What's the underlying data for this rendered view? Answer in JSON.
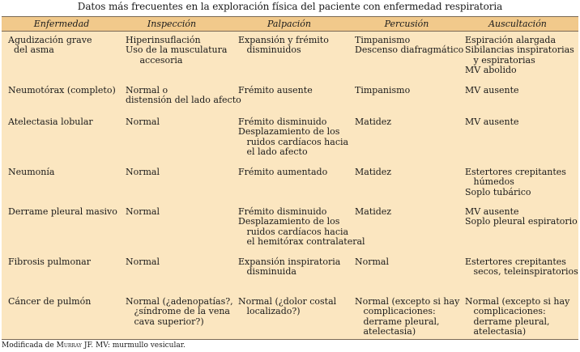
{
  "title": "Datos más frecuentes en la exploración física del paciente con enfermedad respiratoria",
  "headers": [
    "Enfermedad",
    "Inspección",
    "Palpación",
    "Percusión",
    "Auscultación"
  ],
  "rows": [
    {
      "cells": [
        [
          "Agudización grave",
          "  del asma"
        ],
        [
          "Hiperinsuflación",
          "Uso de la musculatura",
          "     accesoria"
        ],
        [
          "Expansión y frémito",
          "   disminuidos"
        ],
        [
          "Timpanismo",
          "Descenso diafragmático"
        ],
        [
          "Espiración alargada",
          "Sibilancias inspiratorias",
          "   y espiratorias",
          "MV abolido"
        ]
      ]
    },
    {
      "cells": [
        [
          "Neumotórax (completo)"
        ],
        [
          "Normal o",
          "distensión del lado afecto"
        ],
        [
          "Frémito ausente"
        ],
        [
          "Timpanismo"
        ],
        [
          "MV ausente"
        ]
      ]
    },
    {
      "cells": [
        [
          "Atelectasia lobular"
        ],
        [
          "Normal"
        ],
        [
          "Frémito disminuido",
          "Desplazamiento de los",
          "   ruidos cardíacos hacia",
          "   el lado afecto"
        ],
        [
          "Matidez"
        ],
        [
          "MV ausente"
        ]
      ]
    },
    {
      "cells": [
        [
          "Neumonía"
        ],
        [
          "Normal"
        ],
        [
          "Frémito aumentado"
        ],
        [
          "Matidez"
        ],
        [
          "Estertores crepitantes",
          "   húmedos",
          "Soplo tubárico"
        ]
      ]
    },
    {
      "cells": [
        [
          "Derrame pleural masivo"
        ],
        [
          "Normal"
        ],
        [
          "Frémito disminuido",
          "Desplazamiento de los",
          "   ruidos cardíacos hacia",
          "   el hemitórax contralateral"
        ],
        [
          "Matidez"
        ],
        [
          "MV ausente",
          "Soplo pleural espiratorio"
        ]
      ]
    },
    {
      "cells": [
        [
          "Fibrosis pulmonar"
        ],
        [
          "Normal"
        ],
        [
          "Expansión inspiratoria",
          "   disminuida"
        ],
        [
          "Normal"
        ],
        [
          "Estertores crepitantes",
          "   secos, teleinspiratorios"
        ]
      ]
    },
    {
      "cells": [
        [
          "Cáncer de pulmón"
        ],
        [
          "Normal (¿adenopatías?,",
          "   ¿síndrome de la vena",
          "   cava superior?)"
        ],
        [
          "Normal (¿dolor costal",
          "   localizado?)"
        ],
        [
          "Normal (excepto si hay",
          "   complicaciones:",
          "   derrame pleural,",
          "   atelectasia)"
        ],
        [
          "Normal (excepto si hay",
          "   complicaciones:",
          "   derrame pleural,",
          "   atelectasia)"
        ]
      ]
    }
  ],
  "footnote": {
    "prefix": "Modificada de ",
    "author": "Murray",
    "suffix": " JF. MV: murmullo vesicular."
  }
}
